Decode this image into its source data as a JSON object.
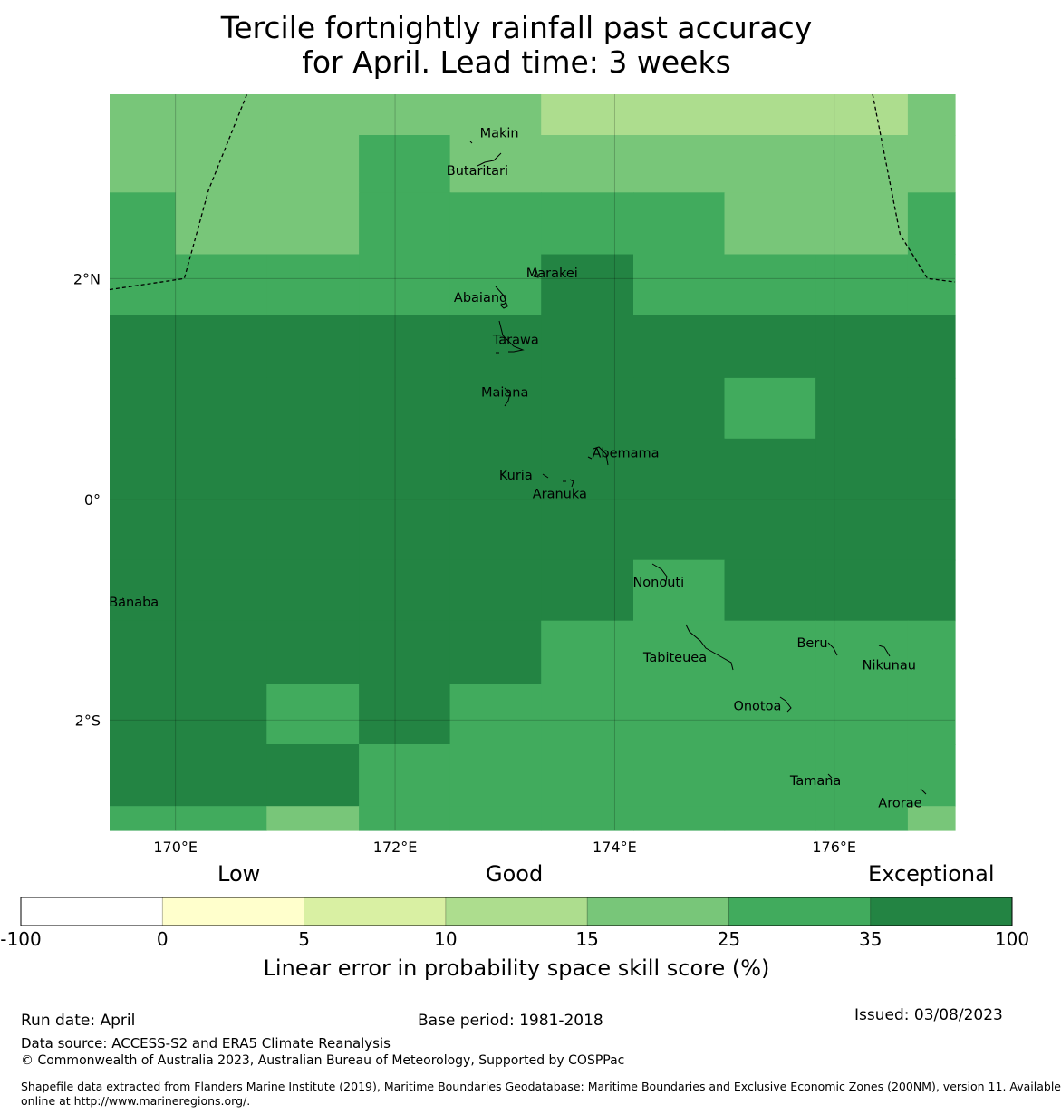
{
  "title_line1": "Tercile fortnightly rainfall past accuracy",
  "title_line2": "for April. Lead time: 3 weeks",
  "map": {
    "lon_range": [
      169.4,
      177.1
    ],
    "lat_range": [
      -3.0,
      3.67
    ],
    "xticks": [
      {
        "lon": 170,
        "label": "170°E"
      },
      {
        "lon": 172,
        "label": "172°E"
      },
      {
        "lon": 174,
        "label": "174°E"
      },
      {
        "lon": 176,
        "label": "176°E"
      }
    ],
    "yticks": [
      {
        "lat": 2,
        "label": "2°N"
      },
      {
        "lat": 0,
        "label": "0°"
      },
      {
        "lat": -2,
        "label": "2°S"
      }
    ],
    "grid": {
      "lon_edges": [
        169.4,
        170.0,
        170.83,
        171.67,
        172.5,
        173.33,
        174.17,
        175.0,
        175.83,
        176.67,
        177.1
      ],
      "lat_edges": [
        3.67,
        3.3,
        2.78,
        2.22,
        1.67,
        1.1,
        0.55,
        0.0,
        -0.55,
        -1.1,
        -1.67,
        -2.22,
        -2.78,
        -3.0
      ],
      "classes": [
        [
          4,
          4,
          4,
          4,
          4,
          3,
          3,
          3,
          3,
          4
        ],
        [
          4,
          4,
          4,
          5,
          4,
          4,
          4,
          4,
          4,
          4
        ],
        [
          5,
          4,
          4,
          5,
          5,
          5,
          5,
          4,
          4,
          5
        ],
        [
          5,
          5,
          5,
          5,
          5,
          6,
          5,
          5,
          5,
          5
        ],
        [
          6,
          6,
          6,
          6,
          6,
          6,
          6,
          6,
          6,
          6
        ],
        [
          6,
          6,
          6,
          6,
          6,
          6,
          6,
          5,
          6,
          6
        ],
        [
          6,
          6,
          6,
          6,
          6,
          6,
          6,
          6,
          6,
          6
        ],
        [
          6,
          6,
          6,
          6,
          6,
          6,
          6,
          6,
          6,
          6
        ],
        [
          6,
          6,
          6,
          6,
          6,
          6,
          5,
          6,
          6,
          6
        ],
        [
          6,
          6,
          6,
          6,
          6,
          5,
          5,
          5,
          5,
          5
        ],
        [
          6,
          6,
          5,
          6,
          5,
          5,
          5,
          5,
          5,
          5
        ],
        [
          6,
          6,
          6,
          5,
          5,
          5,
          5,
          5,
          5,
          5
        ],
        [
          5,
          5,
          4,
          5,
          5,
          5,
          5,
          5,
          5,
          4
        ]
      ]
    },
    "eez_west": [
      [
        169.4,
        1.9
      ],
      [
        170.08,
        2.0
      ],
      [
        170.3,
        2.8
      ],
      [
        170.65,
        3.67
      ]
    ],
    "eez_east": [
      [
        176.35,
        3.67
      ],
      [
        176.6,
        2.4
      ],
      [
        176.85,
        2.0
      ],
      [
        177.1,
        1.97
      ]
    ],
    "islands": [
      {
        "name": "Makin",
        "lon": 172.95,
        "lat": 3.32
      },
      {
        "name": "Butaritari",
        "lon": 172.75,
        "lat": 2.98
      },
      {
        "name": "Marakei",
        "lon": 173.43,
        "lat": 2.05
      },
      {
        "name": "Abaiang",
        "lon": 172.78,
        "lat": 1.83
      },
      {
        "name": "Tarawa",
        "lon": 173.1,
        "lat": 1.45
      },
      {
        "name": "Maiana",
        "lon": 173.0,
        "lat": 0.97
      },
      {
        "name": "Abemama",
        "lon": 174.1,
        "lat": 0.42
      },
      {
        "name": "Kuria",
        "lon": 173.1,
        "lat": 0.22
      },
      {
        "name": "Aranuka",
        "lon": 173.5,
        "lat": 0.05
      },
      {
        "name": "Nonouti",
        "lon": 174.4,
        "lat": -0.75
      },
      {
        "name": "Banaba",
        "lon": 169.62,
        "lat": -0.93
      },
      {
        "name": "Beru",
        "lon": 175.8,
        "lat": -1.3
      },
      {
        "name": "Tabiteuea",
        "lon": 174.55,
        "lat": -1.43
      },
      {
        "name": "Nikunau",
        "lon": 176.5,
        "lat": -1.5
      },
      {
        "name": "Onotoa",
        "lon": 175.3,
        "lat": -1.87
      },
      {
        "name": "Tamana",
        "lon": 175.83,
        "lat": -2.55
      },
      {
        "name": "Arorae",
        "lon": 176.6,
        "lat": -2.75
      }
    ]
  },
  "colorbar": {
    "category_low": "Low",
    "category_good": "Good",
    "category_exceptional": "Exceptional",
    "colors": [
      "#ffffff",
      "#ffffcc",
      "#d9f0a3",
      "#addd8e",
      "#78c679",
      "#41ab5d",
      "#238443"
    ],
    "ticks": [
      "-100",
      "0",
      "5",
      "10",
      "15",
      "25",
      "35",
      "100"
    ],
    "title": "Linear error in probability space skill score (%)"
  },
  "footer": {
    "run_date": "Run date: April",
    "base_period": "Base period: 1981-2018",
    "issued": "Issued: 03/08/2023",
    "data_source": "Data source: ACCESS-S2 and ERA5 Climate Reanalysis",
    "copyright": "© Commonwealth of Australia 2023, Australian Bureau of Meteorology, Supported by COSPPac",
    "shapefile_line1": "Shapefile data extracted from Flanders Marine Institute (2019), Maritime Boundaries Geodatabase: Maritime Boundaries and Exclusive Economic Zones (200NM), version 11. Available",
    "shapefile_line2": "online at http://www.marineregions.org/."
  }
}
